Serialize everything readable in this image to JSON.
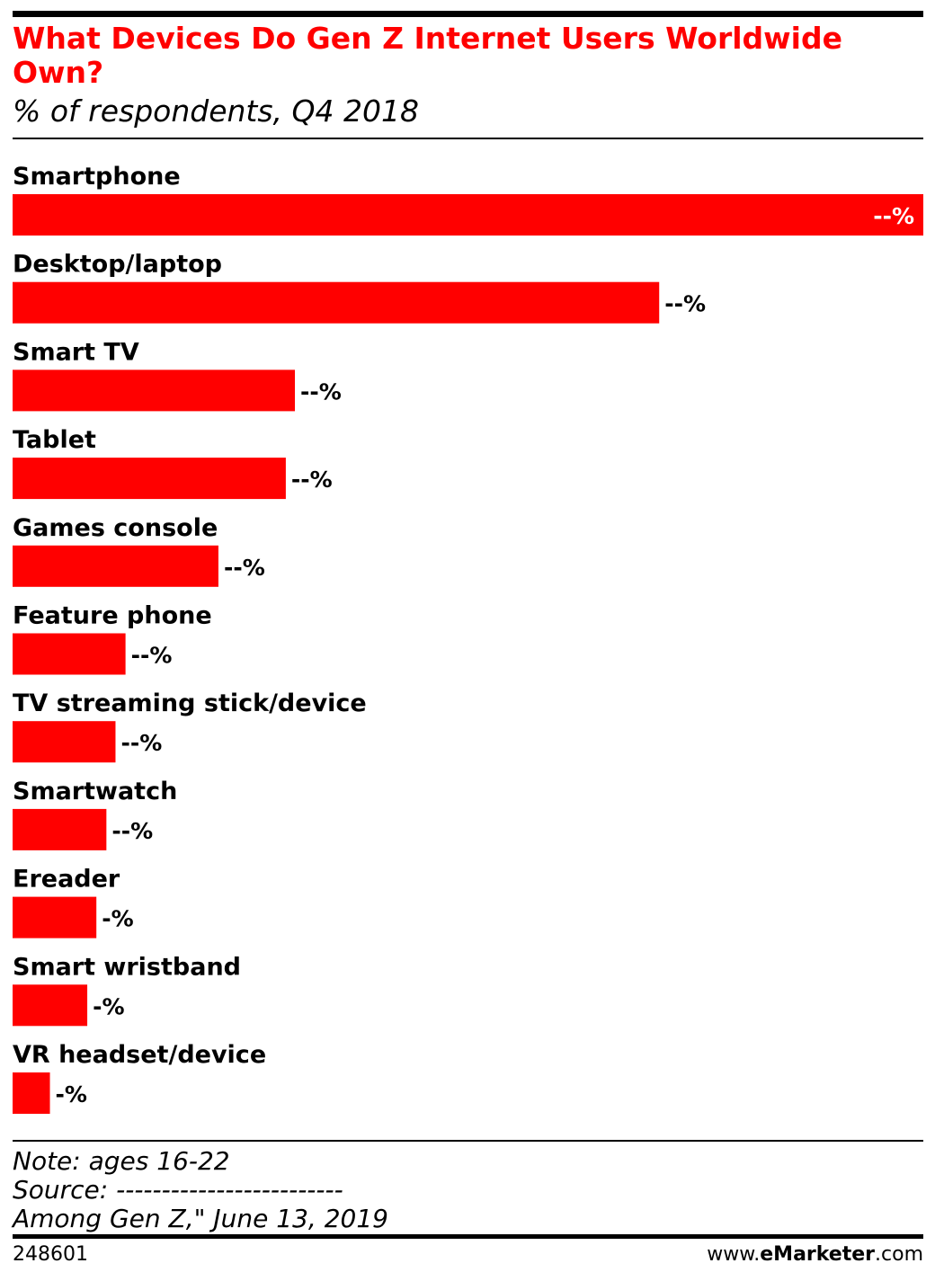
{
  "header": {
    "title": "What Devices Do Gen Z Internet Users Worldwide Own?",
    "subtitle": "% of respondents, Q4 2018"
  },
  "chart_data": {
    "type": "bar",
    "orientation": "horizontal",
    "title": "What Devices Do Gen Z Internet Users Worldwide Own?",
    "subtitle": "% of respondents, Q4 2018",
    "categories": [
      "Smartphone",
      "Desktop/laptop",
      "Smart TV",
      "Tablet",
      "Games console",
      "Feature phone",
      "TV streaming stick/device",
      "Smartwatch",
      "Ereader",
      "Smart wristband",
      "VR headset/device"
    ],
    "values": [
      100,
      71,
      31,
      30,
      22.6,
      12.4,
      11.3,
      10.3,
      9.2,
      8.2,
      4.1
    ],
    "value_labels": [
      "--%",
      "--%",
      "--%",
      "--%",
      "--%",
      "--%",
      "--%",
      "--%",
      "-%",
      "-%",
      "-%"
    ],
    "xlim": [
      0,
      100
    ],
    "bar_color": "#ff0000",
    "grid": false,
    "legend": "none"
  },
  "footer": {
    "note": "Note: ages 16-22",
    "source": "Source: -------------------------",
    "source_cont": "Among Gen Z,\" June 13, 2019",
    "chart_id": "248601",
    "brand_prefix": "www.",
    "brand_bold": "eMarketer",
    "brand_suffix": ".com"
  }
}
